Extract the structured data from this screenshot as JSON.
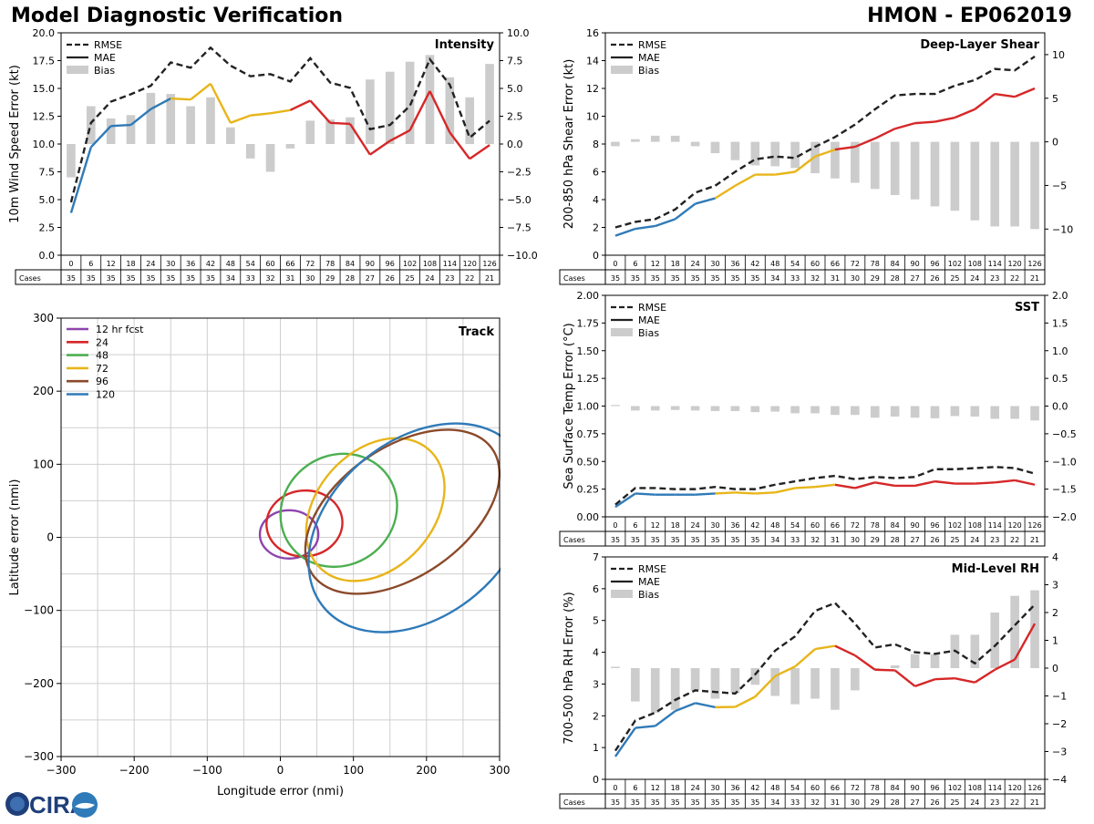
{
  "header": {
    "title": "Model Diagnostic Verification",
    "storm": "HMON - EP062019"
  },
  "logo": {
    "text": "CIRA"
  },
  "colors": {
    "rmse": "#222222",
    "early": "#2f7ab8",
    "mid": "#e8b51a",
    "late": "#d62728",
    "bias": "#cccccc"
  },
  "taus": [
    "0",
    "6",
    "12",
    "18",
    "24",
    "30",
    "36",
    "42",
    "48",
    "54",
    "60",
    "66",
    "72",
    "78",
    "84",
    "90",
    "96",
    "102",
    "108",
    "114",
    "120",
    "126"
  ],
  "cases": [
    "35",
    "35",
    "35",
    "35",
    "35",
    "35",
    "35",
    "35",
    "34",
    "33",
    "32",
    "31",
    "30",
    "29",
    "28",
    "27",
    "26",
    "25",
    "24",
    "23",
    "22",
    "21"
  ],
  "cases_label": "Cases",
  "legend_labels": {
    "rmse": "RMSE",
    "mae": "MAE",
    "bias": "Bias"
  },
  "chart_data": [
    {
      "id": "intensity",
      "type": "line",
      "title": "Intensity",
      "ylabel": "10m Wind Speed Error (kt)",
      "ylim": [
        0,
        21
      ],
      "yticks": [
        "0.0",
        "2.5",
        "5.0",
        "7.5",
        "10.0",
        "12.5",
        "15.0",
        "17.5",
        "20.0"
      ],
      "y2lim": [
        -10,
        10
      ],
      "y2ticks": [
        "−10.0",
        "−7.5",
        "−5.0",
        "−2.5",
        "0.0",
        "2.5",
        "5.0",
        "7.5",
        "10.0"
      ],
      "x": [
        0,
        6,
        12,
        18,
        24,
        30,
        36,
        42,
        48,
        54,
        60,
        66,
        72,
        78,
        84,
        90,
        96,
        102,
        108,
        114,
        120,
        126
      ],
      "series": [
        {
          "name": "RMSE",
          "values": [
            5.0,
            12.5,
            14.5,
            15.2,
            16.0,
            18.2,
            17.7,
            19.6,
            17.9,
            16.9,
            17.1,
            16.4,
            18.6,
            16.3,
            15.8,
            11.9,
            12.3,
            14.1,
            18.5,
            16.1,
            11.1,
            12.7
          ]
        },
        {
          "name": "MAE",
          "values": [
            4.0,
            10.2,
            12.2,
            12.3,
            13.8,
            14.8,
            14.7,
            16.2,
            12.5,
            13.2,
            13.4,
            13.7,
            14.6,
            12.5,
            12.4,
            9.5,
            10.8,
            11.8,
            15.5,
            11.6,
            9.1,
            10.4
          ]
        },
        {
          "name": "Bias",
          "values": [
            -3.0,
            3.4,
            2.3,
            2.6,
            4.6,
            4.5,
            3.4,
            4.2,
            1.5,
            -1.3,
            -2.5,
            -0.4,
            2.1,
            2.2,
            2.4,
            5.8,
            6.5,
            7.4,
            8.0,
            6.0,
            4.2,
            7.2
          ]
        }
      ]
    },
    {
      "id": "shear",
      "type": "line",
      "title": "Deep-Layer Shear",
      "ylabel": "200-850 hPa Shear Error (kt)",
      "ylim": [
        0,
        16
      ],
      "yticks": [
        "0",
        "2",
        "4",
        "6",
        "8",
        "10",
        "12",
        "14",
        "16"
      ],
      "y2lim": [
        -13,
        12.5
      ],
      "y2ticks": [
        "−10",
        "−5",
        "0",
        "5",
        "10"
      ],
      "x": [
        0,
        6,
        12,
        18,
        24,
        30,
        36,
        42,
        48,
        54,
        60,
        66,
        72,
        78,
        84,
        90,
        96,
        102,
        108,
        114,
        120,
        126
      ],
      "series": [
        {
          "name": "RMSE",
          "values": [
            2.0,
            2.4,
            2.6,
            3.3,
            4.5,
            5.0,
            6.0,
            6.9,
            7.1,
            7.0,
            7.8,
            8.5,
            9.4,
            10.5,
            11.5,
            11.6,
            11.6,
            12.2,
            12.6,
            13.4,
            13.3,
            14.3
          ]
        },
        {
          "name": "MAE",
          "values": [
            1.4,
            1.9,
            2.1,
            2.6,
            3.7,
            4.1,
            5.0,
            5.8,
            5.8,
            6.0,
            7.1,
            7.6,
            7.8,
            8.4,
            9.1,
            9.5,
            9.6,
            9.9,
            10.5,
            11.6,
            11.4,
            12.0
          ]
        },
        {
          "name": "Bias",
          "values": [
            -0.5,
            0.3,
            0.7,
            0.7,
            -0.5,
            -1.3,
            -2.1,
            -2.7,
            -2.8,
            -3.0,
            -3.6,
            -4.2,
            -4.7,
            -5.4,
            -6.1,
            -6.6,
            -7.4,
            -7.9,
            -9.0,
            -9.7,
            -9.7,
            -10.0
          ]
        }
      ]
    },
    {
      "id": "sst",
      "type": "line",
      "title": "SST",
      "ylabel": "Sea Surface Temp Error (°C)",
      "ylim": [
        0,
        2.0
      ],
      "yticks": [
        "0.00",
        "0.25",
        "0.50",
        "0.75",
        "1.00",
        "1.25",
        "1.50",
        "1.75",
        "2.00"
      ],
      "y2lim": [
        -2.0,
        2.0
      ],
      "y2ticks": [
        "−2.0",
        "−1.5",
        "−1.0",
        "−0.5",
        "0.0",
        "0.5",
        "1.0",
        "1.5",
        "2.0"
      ],
      "x": [
        0,
        6,
        12,
        18,
        24,
        30,
        36,
        42,
        48,
        54,
        60,
        66,
        72,
        78,
        84,
        90,
        96,
        102,
        108,
        114,
        120,
        126
      ],
      "series": [
        {
          "name": "RMSE",
          "values": [
            0.11,
            0.26,
            0.26,
            0.25,
            0.25,
            0.27,
            0.25,
            0.25,
            0.29,
            0.32,
            0.35,
            0.37,
            0.34,
            0.36,
            0.35,
            0.36,
            0.43,
            0.43,
            0.44,
            0.45,
            0.44,
            0.39
          ]
        },
        {
          "name": "MAE",
          "values": [
            0.09,
            0.21,
            0.2,
            0.2,
            0.2,
            0.21,
            0.22,
            0.21,
            0.22,
            0.26,
            0.27,
            0.29,
            0.26,
            0.31,
            0.28,
            0.28,
            0.32,
            0.3,
            0.3,
            0.31,
            0.33,
            0.29
          ]
        },
        {
          "name": "Bias",
          "values": [
            0.02,
            -0.08,
            -0.08,
            -0.07,
            -0.08,
            -0.09,
            -0.09,
            -0.11,
            -0.1,
            -0.13,
            -0.13,
            -0.16,
            -0.16,
            -0.21,
            -0.19,
            -0.21,
            -0.22,
            -0.18,
            -0.19,
            -0.23,
            -0.23,
            -0.26
          ]
        }
      ]
    },
    {
      "id": "rh",
      "type": "line",
      "title": "Mid-Level RH",
      "ylabel": "700-500 hPa RH Error (%)",
      "ylim": [
        0,
        7
      ],
      "yticks": [
        "0",
        "1",
        "2",
        "3",
        "4",
        "5",
        "6",
        "7"
      ],
      "y2lim": [
        -4,
        4
      ],
      "y2ticks": [
        "−4",
        "−3",
        "−2",
        "−1",
        "0",
        "1",
        "2",
        "3",
        "4"
      ],
      "x": [
        0,
        6,
        12,
        18,
        24,
        30,
        36,
        42,
        48,
        54,
        60,
        66,
        72,
        78,
        84,
        90,
        96,
        102,
        108,
        114,
        120,
        126
      ],
      "series": [
        {
          "name": "RMSE",
          "values": [
            0.9,
            1.85,
            2.1,
            2.5,
            2.8,
            2.75,
            2.7,
            3.3,
            4.05,
            4.5,
            5.3,
            5.55,
            4.9,
            4.15,
            4.25,
            4.0,
            3.95,
            4.05,
            3.65,
            4.2,
            4.85,
            5.5
          ]
        },
        {
          "name": "MAE",
          "values": [
            0.72,
            1.62,
            1.68,
            2.15,
            2.4,
            2.27,
            2.28,
            2.6,
            3.25,
            3.55,
            4.1,
            4.2,
            3.9,
            3.45,
            3.43,
            2.93,
            3.15,
            3.18,
            3.05,
            3.45,
            3.77,
            4.9
          ]
        },
        {
          "name": "Bias",
          "values": [
            0.05,
            -1.2,
            -1.6,
            -1.5,
            -0.8,
            -1.1,
            -0.9,
            -0.6,
            -1.0,
            -1.3,
            -1.1,
            -1.5,
            -0.8,
            0.0,
            0.1,
            0.5,
            0.5,
            1.2,
            1.2,
            2.0,
            2.6,
            2.8
          ]
        }
      ]
    },
    {
      "id": "track",
      "type": "scatter",
      "title": "Track",
      "xlabel": "Longitude error (nmi)",
      "ylabel": "Latitude error (nmi)",
      "xlim": [
        -300,
        300
      ],
      "ylim": [
        -300,
        300
      ],
      "xticks": [
        "−300",
        "−200",
        "−100",
        "0",
        "100",
        "200",
        "300"
      ],
      "yticks": [
        "−300",
        "−200",
        "−100",
        "0",
        "100",
        "200",
        "300"
      ],
      "ellipses": [
        {
          "name": "12 hr fcst",
          "color": "#8e44ad",
          "cx": 12,
          "cy": 4,
          "rx": 40,
          "ry": 33,
          "angle": 0
        },
        {
          "name": "24",
          "color": "#d62728",
          "cx": 33,
          "cy": 19,
          "rx": 52,
          "ry": 45,
          "angle": 5
        },
        {
          "name": "48",
          "color": "#4caf50",
          "cx": 80,
          "cy": 37,
          "rx": 82,
          "ry": 75,
          "angle": 35
        },
        {
          "name": "72",
          "color": "#e8b51a",
          "cx": 130,
          "cy": 38,
          "rx": 110,
          "ry": 80,
          "angle": 48
        },
        {
          "name": "96",
          "color": "#8b4a2b",
          "cx": 167,
          "cy": 35,
          "rx": 150,
          "ry": 88,
          "angle": 35
        },
        {
          "name": "120",
          "color": "#2f7ab8",
          "cx": 190,
          "cy": 13,
          "rx": 170,
          "ry": 120,
          "angle": 40
        }
      ]
    }
  ]
}
